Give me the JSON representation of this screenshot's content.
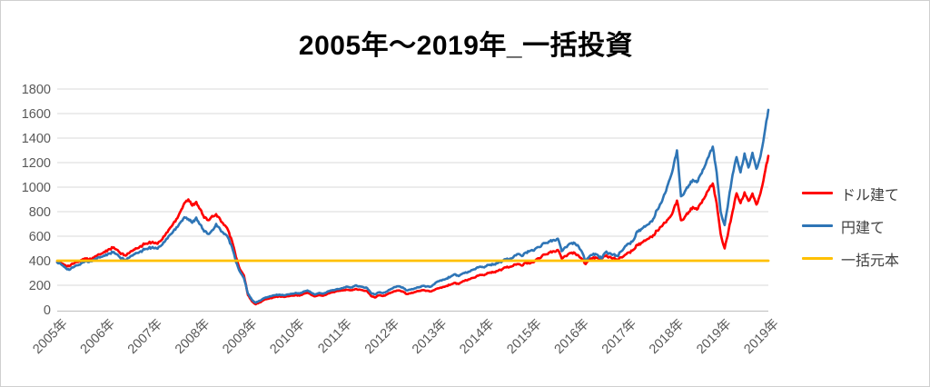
{
  "chart_data": {
    "type": "line",
    "title": "2005年～2019年_一括投資",
    "xlabel": "",
    "ylabel": "",
    "ylim": [
      0,
      1800
    ],
    "y_ticks": [
      0,
      200,
      400,
      600,
      800,
      1000,
      1200,
      1400,
      1600,
      1800
    ],
    "x_tick_labels": [
      "2005年",
      "2006年",
      "2007年",
      "2008年",
      "2009年",
      "2010年",
      "2011年",
      "2012年",
      "2013年",
      "2014年",
      "2015年",
      "2016年",
      "2017年",
      "2018年",
      "2019年",
      "2019年"
    ],
    "grid": "horizontal",
    "legend_position": "right",
    "x_unit": "monthly points from 2005-01 to 2019-12",
    "series": [
      {
        "name": "ドル建て",
        "color": "#ff0000",
        "values": [
          390,
          380,
          365,
          355,
          375,
          390,
          405,
          420,
          410,
          425,
          440,
          455,
          470,
          495,
          505,
          490,
          455,
          445,
          460,
          480,
          500,
          520,
          535,
          545,
          555,
          540,
          560,
          600,
          650,
          690,
          740,
          800,
          870,
          900,
          850,
          880,
          820,
          750,
          730,
          765,
          780,
          740,
          690,
          650,
          560,
          430,
          330,
          280,
          120,
          70,
          45,
          60,
          80,
          90,
          95,
          105,
          110,
          105,
          110,
          115,
          120,
          115,
          130,
          140,
          120,
          110,
          120,
          115,
          130,
          140,
          148,
          155,
          158,
          163,
          160,
          168,
          165,
          158,
          152,
          112,
          100,
          118,
          112,
          125,
          140,
          152,
          158,
          150,
          128,
          135,
          145,
          152,
          160,
          155,
          150,
          162,
          175,
          185,
          195,
          205,
          220,
          210,
          230,
          240,
          252,
          262,
          278,
          285,
          290,
          305,
          308,
          318,
          330,
          345,
          352,
          368,
          372,
          360,
          385,
          378,
          388,
          420,
          438,
          452,
          468,
          478,
          488,
          418,
          438,
          462,
          468,
          448,
          418,
          372,
          412,
          428,
          422,
          418,
          438,
          432,
          422,
          408,
          428,
          450,
          468,
          490,
          530,
          545,
          562,
          582,
          608,
          645,
          678,
          710,
          748,
          800,
          890,
          730,
          758,
          798,
          838,
          818,
          868,
          918,
          978,
          1030,
          868,
          618,
          500,
          650,
          800,
          950,
          870,
          958,
          888,
          948,
          858,
          948,
          1098,
          1255
        ]
      },
      {
        "name": "円建て",
        "color": "#2e75b6",
        "values": [
          385,
          370,
          345,
          325,
          345,
          362,
          378,
          398,
          390,
          405,
          418,
          430,
          440,
          460,
          468,
          452,
          418,
          408,
          422,
          442,
          462,
          478,
          492,
          502,
          512,
          500,
          518,
          552,
          598,
          628,
          672,
          712,
          755,
          740,
          710,
          752,
          695,
          638,
          618,
          648,
          700,
          658,
          618,
          588,
          510,
          390,
          310,
          258,
          132,
          82,
          58,
          74,
          94,
          104,
          112,
          120,
          124,
          118,
          125,
          130,
          138,
          132,
          148,
          158,
          138,
          125,
          138,
          132,
          148,
          158,
          164,
          170,
          178,
          188,
          182,
          198,
          192,
          185,
          178,
          136,
          125,
          142,
          136,
          150,
          170,
          185,
          192,
          182,
          158,
          165,
          175,
          182,
          195,
          190,
          188,
          212,
          232,
          245,
          255,
          270,
          290,
          275,
          295,
          302,
          315,
          330,
          345,
          350,
          355,
          368,
          372,
          382,
          395,
          410,
          418,
          438,
          455,
          438,
          468,
          480,
          482,
          512,
          530,
          545,
          558,
          570,
          580,
          478,
          510,
          540,
          548,
          528,
          478,
          398,
          438,
          458,
          448,
          418,
          468,
          462,
          452,
          438,
          478,
          520,
          540,
          565,
          640,
          658,
          678,
          700,
          740,
          815,
          870,
          950,
          1050,
          1150,
          1300,
          925,
          965,
          1015,
          1060,
          1040,
          1105,
          1170,
          1250,
          1330,
          1120,
          800,
          690,
          900,
          1100,
          1245,
          1120,
          1275,
          1160,
          1280,
          1150,
          1250,
          1430,
          1630
        ]
      },
      {
        "name": "一括元本",
        "color": "#ffc000",
        "constant": 400
      }
    ]
  },
  "legend": {
    "items": [
      {
        "label": "ドル建て",
        "color": "#ff0000"
      },
      {
        "label": "円建て",
        "color": "#2e75b6"
      },
      {
        "label": "一括元本",
        "color": "#ffc000"
      }
    ]
  },
  "colors": {
    "grid": "#d9d9d9",
    "axis": "#c6c6c6",
    "tick_text": "#595959",
    "legend_text": "#404040",
    "title_text": "#000000",
    "background": "#ffffff"
  }
}
